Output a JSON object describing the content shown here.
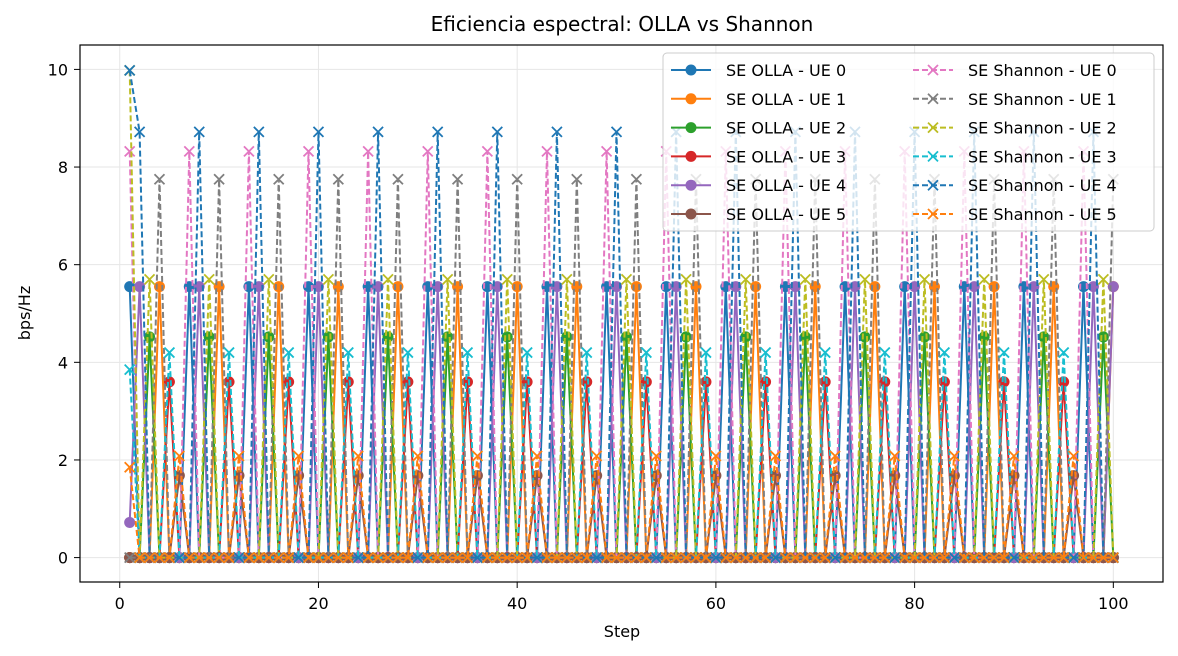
{
  "chart_data": {
    "type": "line",
    "title": "Eficiencia espectral: OLLA vs Shannon",
    "xlabel": "Step",
    "ylabel": "bps/Hz",
    "xlim": [
      -4,
      105
    ],
    "ylim": [
      -0.5,
      10.5
    ],
    "xticks": [
      0,
      20,
      40,
      60,
      80,
      100
    ],
    "yticks": [
      0,
      2,
      4,
      6,
      8,
      10
    ],
    "x_start": 1,
    "x_end": 100,
    "grid": true,
    "legend": {
      "position": "top-right",
      "columns": 2
    },
    "series": [
      {
        "name": "SE OLLA - UE 0",
        "style": "solid",
        "marker": "o",
        "color": "#1f77b4",
        "base_value": 5.55,
        "phase": 0
      },
      {
        "name": "SE OLLA - UE 1",
        "style": "solid",
        "marker": "o",
        "color": "#ff7f0e",
        "base_value": 5.55,
        "phase": 3
      },
      {
        "name": "SE OLLA - UE 2",
        "style": "solid",
        "marker": "o",
        "color": "#2ca02c",
        "base_value": 4.52,
        "phase": 2
      },
      {
        "name": "SE OLLA - UE 3",
        "style": "solid",
        "marker": "o",
        "color": "#d62728",
        "base_value": 3.6,
        "phase": 4
      },
      {
        "name": "SE OLLA - UE 4",
        "style": "solid",
        "marker": "o",
        "color": "#9467bd",
        "base_value": 5.55,
        "phase": 1,
        "first_value": 0.72,
        "last_value": 5.55
      },
      {
        "name": "SE OLLA - UE 5",
        "style": "solid",
        "marker": "o",
        "color": "#8c564b",
        "base_value": 1.68,
        "phase": 5
      },
      {
        "name": "SE Shannon - UE 0",
        "style": "dashed",
        "marker": "x",
        "color": "#e377c2",
        "base_value": 8.32,
        "phase": 0
      },
      {
        "name": "SE Shannon - UE 1",
        "style": "dashed",
        "marker": "x",
        "color": "#7f7f7f",
        "base_value": 7.75,
        "phase": 3
      },
      {
        "name": "SE Shannon - UE 2",
        "style": "dashed",
        "marker": "x",
        "color": "#bcbd22",
        "base_value": 5.7,
        "phase": 2,
        "first_value": 9.98
      },
      {
        "name": "SE Shannon - UE 3",
        "style": "dashed",
        "marker": "x",
        "color": "#17becf",
        "base_value": 4.2,
        "phase": 4,
        "first_value": 3.85
      },
      {
        "name": "SE Shannon - UE 4",
        "style": "dashed",
        "marker": "x",
        "color": "#1f77b4",
        "base_value": 8.72,
        "phase": 1,
        "first_value": 9.98
      },
      {
        "name": "SE Shannon - UE 5",
        "style": "dashed",
        "marker": "x",
        "color": "#ff7f0e",
        "base_value": 2.08,
        "phase": 5,
        "first_value": 1.85
      }
    ]
  }
}
